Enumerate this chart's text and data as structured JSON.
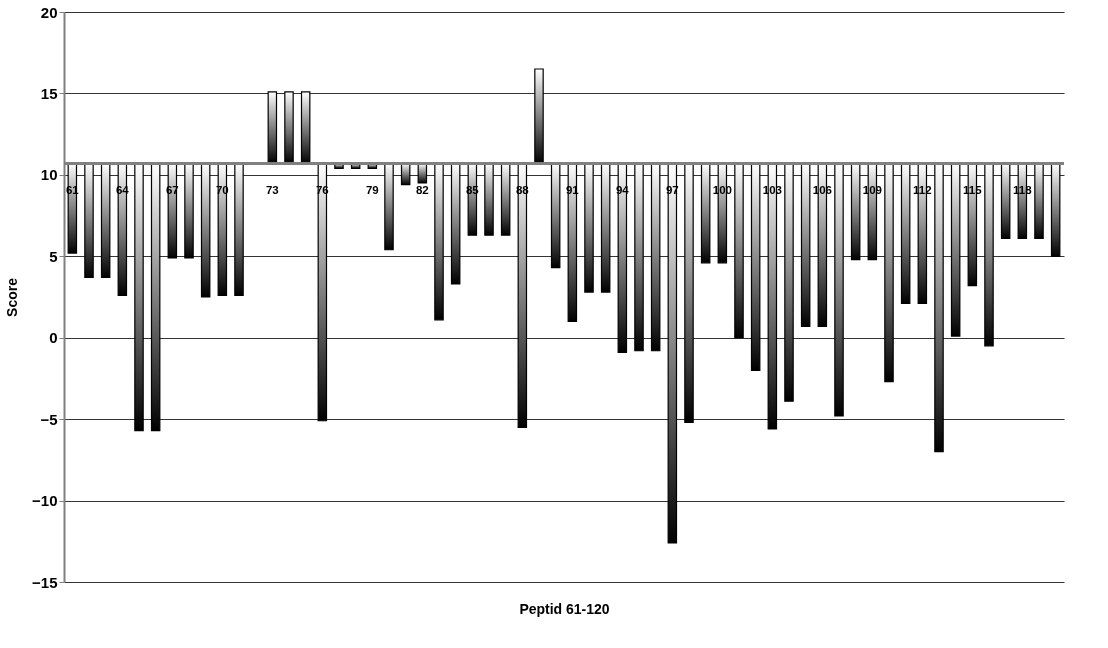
{
  "chart_data": {
    "type": "bar",
    "xlabel": "Peptid 61-120",
    "ylabel": "Score",
    "categories": [
      "61",
      null,
      null,
      "64",
      null,
      null,
      "67",
      null,
      null,
      "70",
      null,
      null,
      "73",
      null,
      null,
      "76",
      null,
      null,
      "79",
      null,
      null,
      "82",
      null,
      null,
      "85",
      null,
      null,
      "88",
      null,
      null,
      "91",
      null,
      null,
      "94",
      null,
      null,
      "97",
      null,
      null,
      "100",
      null,
      null,
      "103",
      null,
      null,
      "106",
      null,
      null,
      "109",
      null,
      null,
      "112",
      null,
      null,
      "115",
      null,
      null,
      "118",
      null,
      null
    ],
    "base": [
      10.7,
      10.7,
      10.7,
      10.7,
      10.7,
      10.7,
      10.7,
      10.7,
      10.7,
      10.7,
      10.7,
      null,
      10.7,
      10.7,
      10.7,
      10.7,
      10.7,
      10.7,
      10.7,
      10.7,
      10.7,
      10.7,
      10.7,
      10.7,
      10.7,
      10.7,
      10.7,
      10.7,
      10.7,
      10.7,
      10.7,
      10.7,
      10.7,
      10.7,
      10.7,
      10.7,
      10.7,
      10.7,
      10.7,
      10.7,
      10.7,
      10.7,
      10.7,
      10.7,
      10.7,
      10.7,
      10.7,
      10.7,
      10.7,
      10.7,
      10.7,
      10.7,
      10.7,
      10.7,
      10.7,
      10.7,
      10.7,
      10.7,
      10.7,
      10.7
    ],
    "values": [
      -5.5,
      -7.0,
      -7.0,
      -8.1,
      -16.4,
      -16.4,
      -5.8,
      -5.8,
      -8.2,
      -8.1,
      -8.1,
      null,
      4.4,
      4.4,
      4.4,
      -15.8,
      -0.3,
      -0.3,
      -0.3,
      -5.3,
      -1.3,
      -1.2,
      -9.6,
      -7.4,
      -4.4,
      -4.4,
      -4.4,
      -16.2,
      5.8,
      -6.4,
      -9.7,
      -7.9,
      -7.9,
      -11.6,
      -11.5,
      -11.5,
      -23.3,
      -15.9,
      -6.1,
      -6.1,
      -10.7,
      -12.7,
      -16.3,
      -14.6,
      -10.0,
      -10.0,
      -15.5,
      -5.9,
      -5.9,
      -13.4,
      -8.6,
      -8.6,
      -17.7,
      -10.6,
      -7.5,
      -11.2,
      -4.6,
      -4.6,
      -4.6,
      -5.7
    ],
    "color": "#000000",
    "ylim": [
      -15,
      20
    ],
    "yticks": [
      -15,
      -10,
      -5,
      0,
      5,
      10,
      15,
      20
    ],
    "grid": "y"
  }
}
